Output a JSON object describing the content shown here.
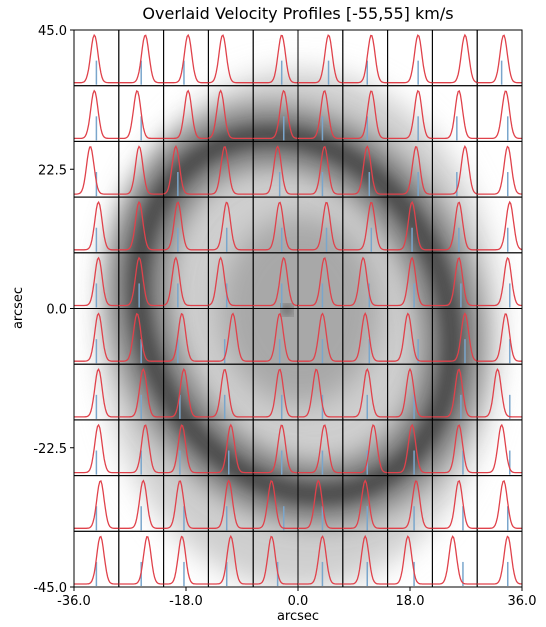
{
  "chart_data": {
    "type": "profile_grid",
    "title": "Overlaid Velocity Profiles [-55,55] km/s",
    "xlabel": "arcsec",
    "ylabel": "arcsec",
    "xlim": [
      -36,
      36
    ],
    "ylim": [
      -45,
      45
    ],
    "xticks": [
      {
        "value": -36,
        "label": "-36.0"
      },
      {
        "value": -18,
        "label": "-18.0"
      },
      {
        "value": 0,
        "label": "0.0"
      },
      {
        "value": 18,
        "label": "18.0"
      },
      {
        "value": 36,
        "label": "36.0"
      }
    ],
    "yticks": [
      {
        "value": -45,
        "label": "-45.0"
      },
      {
        "value": -22.5,
        "label": "-22.5"
      },
      {
        "value": 0,
        "label": "0.0"
      },
      {
        "value": 22.5,
        "label": "22.5"
      },
      {
        "value": 45,
        "label": "45.0"
      }
    ],
    "velocity_range": [
      -55,
      55
    ],
    "profile_width": 9,
    "profile_color": "#e0424b",
    "marker_color": "#7aa6cc",
    "peaks": [
      [
        -5,
        10,
        5,
        -20,
        15,
        20,
        15,
        20,
        25,
        10
      ],
      [
        -5,
        -10,
        5,
        -25,
        20,
        10,
        15,
        20,
        10,
        15
      ],
      [
        -15,
        -5,
        -25,
        -15,
        5,
        10,
        5,
        15,
        25,
        20
      ],
      [
        5,
        -5,
        -20,
        -10,
        10,
        15,
        15,
        5,
        10,
        25
      ],
      [
        5,
        -5,
        -25,
        -25,
        20,
        10,
        -5,
        5,
        10,
        20
      ],
      [
        5,
        -10,
        -10,
        5,
        10,
        5,
        0,
        -5,
        25,
        15
      ],
      [
        5,
        5,
        -5,
        -15,
        10,
        -10,
        5,
        0,
        10,
        -5
      ],
      [
        5,
        10,
        -10,
        0,
        15,
        10,
        20,
        5,
        10,
        5
      ],
      [
        10,
        5,
        -15,
        -5,
        -10,
        -5,
        0,
        15,
        10,
        10
      ],
      [
        10,
        15,
        -10,
        0,
        -10,
        5,
        0,
        -5,
        -5,
        20
      ]
    ],
    "markers": [
      [
        0,
        0,
        -5,
        null,
        15,
        20,
        5,
        20,
        null,
        5
      ],
      [
        0,
        0,
        null,
        null,
        20,
        5,
        5,
        20,
        5,
        20
      ],
      [
        0,
        null,
        -20,
        null,
        10,
        5,
        10,
        20,
        5,
        20
      ],
      [
        0,
        null,
        -20,
        -10,
        15,
        15,
        15,
        5,
        10,
        20
      ],
      [
        0,
        -5,
        -20,
        -10,
        15,
        5,
        10,
        10,
        15,
        25
      ],
      [
        0,
        0,
        -20,
        -15,
        10,
        5,
        10,
        20,
        25,
        25
      ],
      [
        0,
        0,
        -15,
        -15,
        15,
        5,
        5,
        10,
        15,
        25
      ],
      [
        0,
        0,
        -15,
        -5,
        15,
        5,
        5,
        10,
        20,
        25
      ],
      [
        0,
        0,
        -5,
        -10,
        20,
        5,
        5,
        10,
        20,
        20
      ],
      [
        0,
        0,
        -5,
        -10,
        5,
        5,
        5,
        10,
        20,
        20
      ]
    ]
  }
}
